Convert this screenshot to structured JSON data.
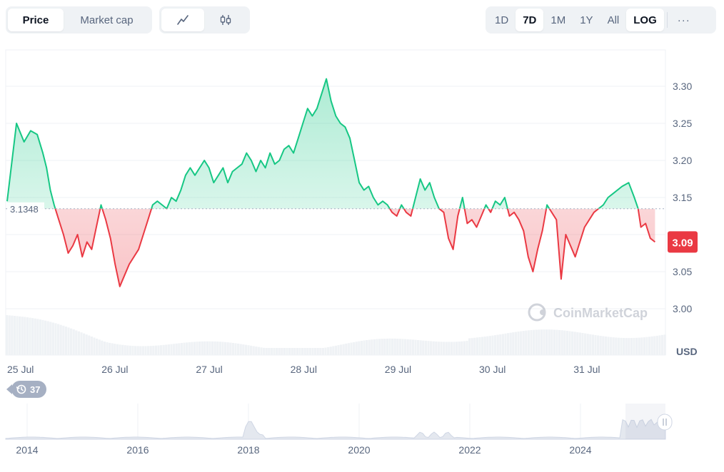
{
  "toolbar": {
    "type_tabs": [
      "Price",
      "Market cap"
    ],
    "active_type": "Price",
    "style_icons": [
      "line-chart-icon",
      "candlestick-icon"
    ],
    "ranges": [
      "1D",
      "7D",
      "1M",
      "1Y",
      "All"
    ],
    "active_range": "7D",
    "log_label": "LOG",
    "more_label": "···"
  },
  "badge": {
    "count": "37",
    "icon": "history-icon"
  },
  "watermark": "CoinMarketCap",
  "colors": {
    "up": "#16c784",
    "down": "#ea3943",
    "grid": "#eff2f5",
    "axis_text": "#58667e",
    "volume": "#eff2f5"
  },
  "chart_data": {
    "type": "line",
    "ylabel": "USD",
    "y_ticks": [
      "3.30",
      "3.25",
      "3.20",
      "3.15",
      "3.10",
      "3.05",
      "3.00"
    ],
    "ylim": [
      2.99,
      3.34
    ],
    "baseline": 3.1348,
    "baseline_label": "3.1348",
    "current_label": "3.09",
    "x_labels": [
      "25 Jul",
      "26 Jul",
      "27 Jul",
      "28 Jul",
      "29 Jul",
      "30 Jul",
      "31 Jul"
    ],
    "series": [
      {
        "points": [
          [
            0,
            3.145
          ],
          [
            0.1,
            3.25
          ],
          [
            0.18,
            3.225
          ],
          [
            0.25,
            3.24
          ],
          [
            0.32,
            3.235
          ],
          [
            0.38,
            3.21
          ],
          [
            0.42,
            3.19
          ],
          [
            0.46,
            3.16
          ],
          [
            0.5,
            3.14
          ],
          [
            0.55,
            3.12
          ],
          [
            0.6,
            3.1
          ],
          [
            0.65,
            3.075
          ],
          [
            0.7,
            3.085
          ],
          [
            0.75,
            3.1
          ],
          [
            0.8,
            3.07
          ],
          [
            0.85,
            3.09
          ],
          [
            0.9,
            3.08
          ],
          [
            0.95,
            3.11
          ],
          [
            1.0,
            3.14
          ],
          [
            1.05,
            3.12
          ],
          [
            1.1,
            3.095
          ],
          [
            1.15,
            3.06
          ],
          [
            1.2,
            3.03
          ],
          [
            1.25,
            3.045
          ],
          [
            1.3,
            3.06
          ],
          [
            1.4,
            3.08
          ],
          [
            1.45,
            3.1
          ],
          [
            1.5,
            3.12
          ],
          [
            1.55,
            3.14
          ],
          [
            1.6,
            3.145
          ],
          [
            1.65,
            3.14
          ],
          [
            1.7,
            3.135
          ],
          [
            1.75,
            3.15
          ],
          [
            1.8,
            3.145
          ],
          [
            1.85,
            3.16
          ],
          [
            1.9,
            3.18
          ],
          [
            1.95,
            3.19
          ],
          [
            2.0,
            3.18
          ],
          [
            2.05,
            3.19
          ],
          [
            2.1,
            3.2
          ],
          [
            2.15,
            3.19
          ],
          [
            2.2,
            3.17
          ],
          [
            2.25,
            3.18
          ],
          [
            2.3,
            3.19
          ],
          [
            2.35,
            3.17
          ],
          [
            2.4,
            3.185
          ],
          [
            2.45,
            3.19
          ],
          [
            2.5,
            3.195
          ],
          [
            2.55,
            3.21
          ],
          [
            2.6,
            3.2
          ],
          [
            2.65,
            3.185
          ],
          [
            2.7,
            3.2
          ],
          [
            2.75,
            3.19
          ],
          [
            2.8,
            3.21
          ],
          [
            2.85,
            3.195
          ],
          [
            2.9,
            3.2
          ],
          [
            2.95,
            3.215
          ],
          [
            3.0,
            3.22
          ],
          [
            3.05,
            3.21
          ],
          [
            3.1,
            3.23
          ],
          [
            3.15,
            3.25
          ],
          [
            3.2,
            3.27
          ],
          [
            3.25,
            3.26
          ],
          [
            3.3,
            3.27
          ],
          [
            3.35,
            3.29
          ],
          [
            3.4,
            3.31
          ],
          [
            3.45,
            3.28
          ],
          [
            3.5,
            3.26
          ],
          [
            3.55,
            3.25
          ],
          [
            3.6,
            3.245
          ],
          [
            3.65,
            3.23
          ],
          [
            3.7,
            3.2
          ],
          [
            3.75,
            3.17
          ],
          [
            3.8,
            3.16
          ],
          [
            3.85,
            3.165
          ],
          [
            3.9,
            3.15
          ],
          [
            3.95,
            3.14
          ],
          [
            4.0,
            3.145
          ],
          [
            4.05,
            3.14
          ],
          [
            4.1,
            3.13
          ],
          [
            4.15,
            3.125
          ],
          [
            4.2,
            3.14
          ],
          [
            4.25,
            3.13
          ],
          [
            4.3,
            3.125
          ],
          [
            4.35,
            3.15
          ],
          [
            4.4,
            3.175
          ],
          [
            4.45,
            3.16
          ],
          [
            4.5,
            3.17
          ],
          [
            4.55,
            3.15
          ],
          [
            4.6,
            3.135
          ],
          [
            4.65,
            3.13
          ],
          [
            4.7,
            3.095
          ],
          [
            4.75,
            3.08
          ],
          [
            4.8,
            3.125
          ],
          [
            4.85,
            3.15
          ],
          [
            4.9,
            3.115
          ],
          [
            4.95,
            3.12
          ],
          [
            5.0,
            3.11
          ],
          [
            5.05,
            3.125
          ],
          [
            5.1,
            3.14
          ],
          [
            5.15,
            3.13
          ],
          [
            5.2,
            3.145
          ],
          [
            5.25,
            3.14
          ],
          [
            5.3,
            3.15
          ],
          [
            5.35,
            3.125
          ],
          [
            5.4,
            3.13
          ],
          [
            5.45,
            3.12
          ],
          [
            5.5,
            3.105
          ],
          [
            5.55,
            3.07
          ],
          [
            5.6,
            3.05
          ],
          [
            5.65,
            3.08
          ],
          [
            5.7,
            3.105
          ],
          [
            5.75,
            3.14
          ],
          [
            5.8,
            3.13
          ],
          [
            5.85,
            3.12
          ],
          [
            5.9,
            3.04
          ],
          [
            5.95,
            3.1
          ],
          [
            6.0,
            3.085
          ],
          [
            6.05,
            3.07
          ],
          [
            6.1,
            3.09
          ],
          [
            6.15,
            3.11
          ],
          [
            6.2,
            3.12
          ],
          [
            6.25,
            3.13
          ],
          [
            6.3,
            3.135
          ],
          [
            6.35,
            3.14
          ],
          [
            6.4,
            3.15
          ],
          [
            6.45,
            3.155
          ],
          [
            6.55,
            3.165
          ],
          [
            6.62,
            3.17
          ],
          [
            6.68,
            3.15
          ],
          [
            6.72,
            3.135
          ],
          [
            6.75,
            3.11
          ],
          [
            6.8,
            3.115
          ],
          [
            6.85,
            3.095
          ],
          [
            6.9,
            3.09
          ]
        ]
      }
    ]
  },
  "history_axis": {
    "labels": [
      "2014",
      "2016",
      "2018",
      "2020",
      "2022",
      "2024"
    ]
  }
}
